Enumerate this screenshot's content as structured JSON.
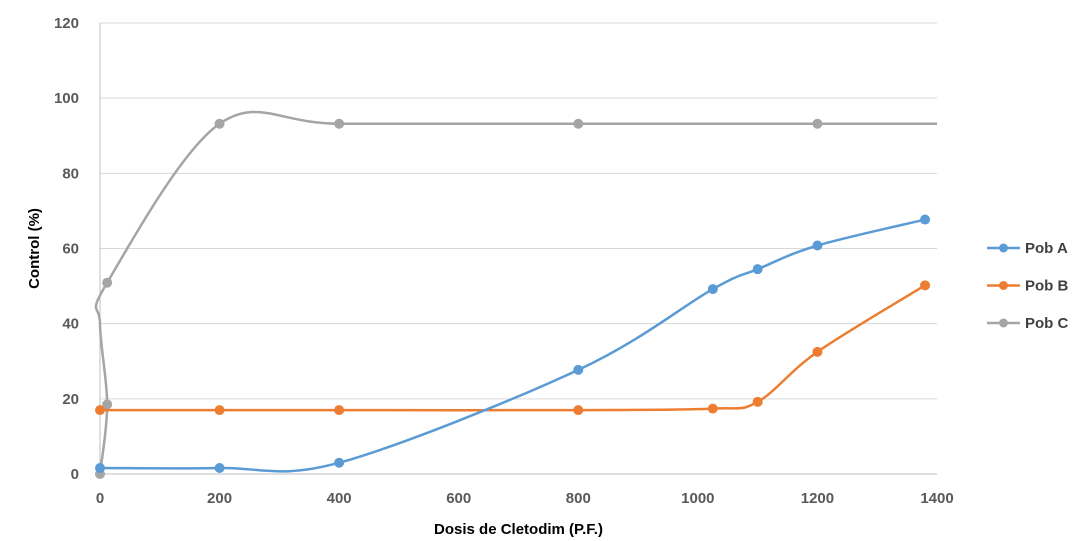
{
  "chart_data": {
    "type": "line",
    "title": "",
    "xlabel": "Dosis de Cletodim (P.F.)",
    "ylabel": "Control (%)",
    "xlim": [
      0,
      1400
    ],
    "ylim": [
      0,
      120
    ],
    "xticks": [
      0,
      200,
      400,
      600,
      800,
      1000,
      1200,
      1400
    ],
    "yticks": [
      0,
      20,
      40,
      60,
      80,
      100,
      120
    ],
    "grid": "horizontal",
    "legend_position": "right",
    "series": [
      {
        "name": "Pob A",
        "color": "#5b9bd5",
        "x": [
          0,
          200,
          400,
          800,
          1025,
          1100,
          1200,
          1380
        ],
        "y": [
          1.6,
          1.6,
          3.0,
          27.7,
          49.2,
          54.5,
          60.8,
          67.7
        ]
      },
      {
        "name": "Pob B",
        "color": "#ed7d31",
        "x": [
          0,
          200,
          400,
          800,
          1025,
          1100,
          1200,
          1380
        ],
        "y": [
          17.0,
          17.0,
          17.0,
          17.0,
          17.4,
          19.2,
          32.5,
          50.2
        ]
      },
      {
        "name": "Pob C",
        "color": "#a5a5a5",
        "x": [
          0,
          12,
          0,
          12,
          200,
          400,
          800,
          1200,
          1400
        ],
        "y": [
          0.0,
          18.5,
          40.0,
          50.9,
          93.2,
          93.2,
          93.2,
          93.2,
          93.2
        ],
        "marker_x": [
          0,
          12,
          12,
          200,
          400,
          800,
          1200
        ],
        "marker_y": [
          0.0,
          18.5,
          50.9,
          93.2,
          93.2,
          93.2,
          93.2
        ]
      }
    ]
  }
}
